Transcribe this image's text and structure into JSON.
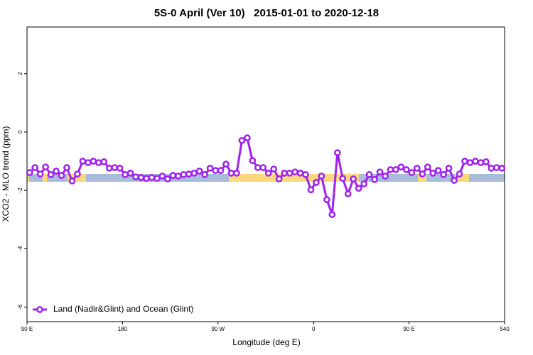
{
  "chart_data": {
    "type": "line",
    "title": "5S-0 April (Ver 10)   2015-01-01 to 2020-12-18",
    "xlabel": "Longitude (deg E)",
    "ylabel": "XCO2 - MLO trend (ppm)",
    "x": [
      92.5,
      97.5,
      102.5,
      107.5,
      112.5,
      117.5,
      122.5,
      127.5,
      132.5,
      137.5,
      142.5,
      147.5,
      152.5,
      157.5,
      162.5,
      167.5,
      172.5,
      177.5,
      182.5,
      187.5,
      192.5,
      197.5,
      202.5,
      207.5,
      212.5,
      217.5,
      222.5,
      227.5,
      232.5,
      237.5,
      242.5,
      247.5,
      252.5,
      257.5,
      262.5,
      267.5,
      272.5,
      277.5,
      282.5,
      287.5,
      292.5,
      297.5,
      302.5,
      307.5,
      312.5,
      317.5,
      322.5,
      327.5,
      332.5,
      337.5,
      342.5,
      347.5,
      352.5,
      357.5,
      362.5,
      367.5,
      372.5,
      377.5,
      382.5,
      387.5,
      392.5,
      397.5,
      402.5,
      407.5,
      412.5,
      417.5,
      422.5,
      427.5,
      432.5,
      437.5,
      442.5,
      447.5,
      452.5,
      457.5,
      462.5,
      467.5,
      472.5,
      477.5,
      482.5,
      487.5,
      492.5,
      497.5,
      502.5,
      507.5,
      512.5,
      517.5,
      522.5,
      527.5,
      532.5,
      537.5
    ],
    "series": [
      {
        "name": "Land (Nadir&Glint) and Ocean (Glint)",
        "color": "#a020f0",
        "values": [
          -1.39,
          -1.22,
          -1.44,
          -1.2,
          -1.46,
          -1.34,
          -1.49,
          -1.22,
          -1.68,
          -1.44,
          -1.0,
          -1.05,
          -1.0,
          -1.05,
          -1.02,
          -1.24,
          -1.22,
          -1.24,
          -1.46,
          -1.41,
          -1.54,
          -1.56,
          -1.59,
          -1.56,
          -1.59,
          -1.51,
          -1.61,
          -1.49,
          -1.51,
          -1.46,
          -1.44,
          -1.41,
          -1.34,
          -1.46,
          -1.24,
          -1.32,
          -1.32,
          -1.1,
          -1.41,
          -1.41,
          -0.29,
          -0.2,
          -0.98,
          -1.22,
          -1.22,
          -1.41,
          -1.27,
          -1.61,
          -1.41,
          -1.41,
          -1.37,
          -1.41,
          -1.46,
          -1.98,
          -1.73,
          -1.51,
          -2.32,
          -2.83,
          -0.71,
          -1.59,
          -2.12,
          -1.61,
          -1.93,
          -1.78,
          -1.46,
          -1.63,
          -1.37,
          -1.51,
          -1.29,
          -1.29,
          -1.2,
          -1.29,
          -1.39,
          -1.24,
          -1.44,
          -1.2,
          -1.41,
          -1.32,
          -1.46,
          -1.24,
          -1.66,
          -1.44,
          -1.0,
          -1.05,
          -1.0,
          -1.05,
          -1.02,
          -1.24,
          -1.22,
          -1.24
        ]
      }
    ],
    "xlim": [
      90,
      540
    ],
    "xticks": [
      {
        "value": 90,
        "label": "90 E"
      },
      180,
      {
        "value": 270,
        "label": "90 W"
      },
      {
        "value": 360,
        "label": "0"
      },
      {
        "value": 450,
        "label": "90 E"
      },
      540
    ],
    "ylim": [
      -6.5,
      3.6
    ],
    "yticks": [
      -6,
      -4,
      -2,
      0,
      2
    ],
    "legend": "bottom-left"
  }
}
